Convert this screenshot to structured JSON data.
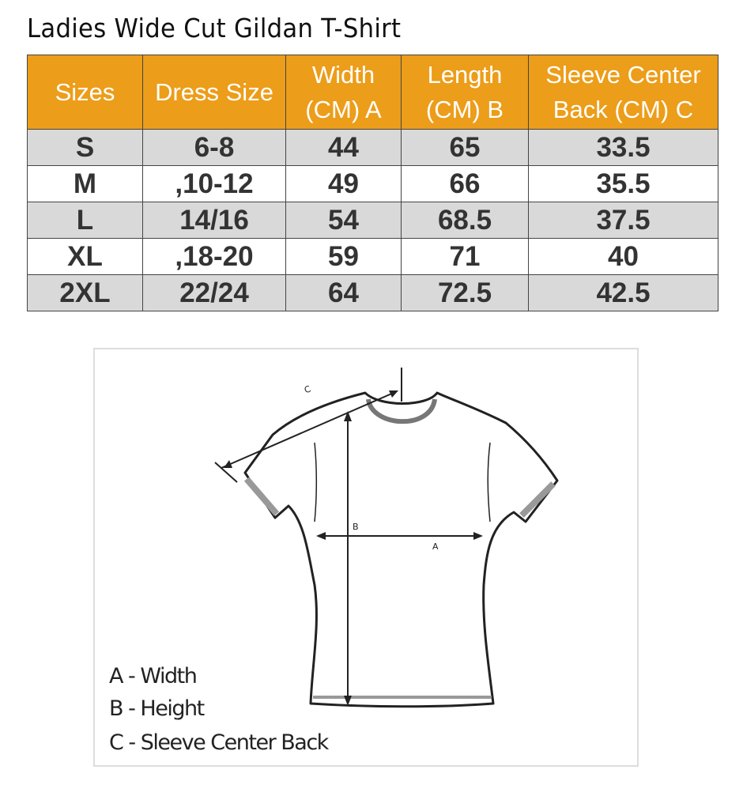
{
  "title": "Ladies Wide Cut Gildan T-Shirt",
  "table": {
    "headers": [
      "Sizes",
      "Dress Size",
      "Width\n(CM) A",
      "Length\n(CM) B",
      "Sleeve Center\nBack (CM) C"
    ],
    "rows": [
      [
        "S",
        "6-8",
        "44",
        "65",
        "33.5"
      ],
      [
        "M",
        ",10-12",
        "49",
        "66",
        "35.5"
      ],
      [
        "L",
        "14/16",
        "54",
        "68.5",
        "37.5"
      ],
      [
        "XL",
        ",18-20",
        "59",
        "71",
        "40"
      ],
      [
        "2XL",
        "22/24",
        "64",
        "72.5",
        "42.5"
      ]
    ],
    "header_color": "#ec9d19",
    "stripe_color": "#d9d9d9"
  },
  "diagram": {
    "labels": {
      "a": "A",
      "b": "B",
      "c": "C"
    },
    "legend": [
      "A - Width",
      "B - Height",
      "C - Sleeve Center Back"
    ]
  }
}
